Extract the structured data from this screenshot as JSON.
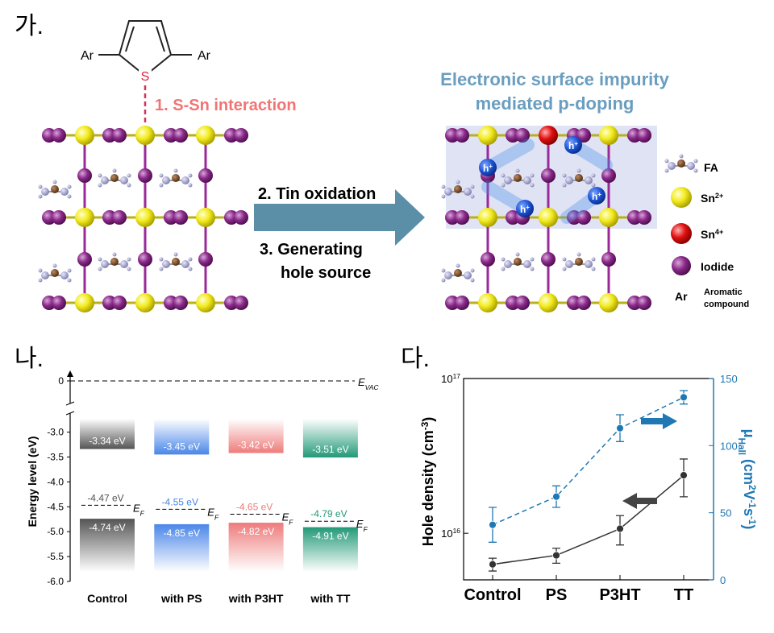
{
  "panels": {
    "a": {
      "label": "가.",
      "molecule": {
        "substituent_left": "Ar",
        "substituent_right": "Ar",
        "heteroatom": "S"
      },
      "step1": "1. S-Sn interaction",
      "step2": "2. Tin oxidation",
      "step3": [
        "3. Generating",
        "hole source"
      ],
      "title": [
        "Electronic surface impurity",
        "mediated p-doping"
      ],
      "holes": [
        {
          "base": "h",
          "charge": "+"
        },
        {
          "base": "h",
          "charge": "+"
        },
        {
          "base": "h",
          "charge": "+"
        },
        {
          "base": "h",
          "charge": "+"
        }
      ],
      "legend": [
        {
          "label": "FA"
        },
        {
          "label": "Sn",
          "charge": "2+"
        },
        {
          "label": "Sn",
          "charge": "4+"
        },
        {
          "label": "Iodide"
        },
        {
          "label": "Ar",
          "description": [
            "Aromatic",
            "compound"
          ]
        }
      ]
    },
    "b": {
      "label": "나."
    },
    "c": {
      "label": "다."
    }
  },
  "chart_data": [
    {
      "type": "energy-level",
      "ylabel": "Energy level (eV)",
      "categories": [
        "Control",
        "with PS",
        "with P3HT",
        "with TT"
      ],
      "colors": [
        "#555555",
        "#4a86e8",
        "#ee7b7b",
        "#229977"
      ],
      "cbm": {
        "values": [
          -3.34,
          -3.45,
          -3.42,
          -3.51
        ],
        "value_labels": [
          "-3.34 eV",
          "-3.45 eV",
          "-3.42 eV",
          "-3.51 eV"
        ]
      },
      "vbm": {
        "values": [
          -4.74,
          -4.85,
          -4.82,
          -4.91
        ],
        "value_labels": [
          "-4.74 eV",
          "-4.85 eV",
          "-4.82 eV",
          "-4.91 eV"
        ]
      },
      "fermi": {
        "values": [
          -4.47,
          -4.55,
          -4.65,
          -4.79
        ],
        "value_labels": [
          "-4.47 eV",
          "-4.55 eV",
          "-4.65 eV",
          "-4.79 eV"
        ],
        "label": {
          "base": "E",
          "sub": "F"
        }
      },
      "vacuum": {
        "value": 0,
        "label": {
          "base": "E",
          "sub": "VAC"
        }
      },
      "ylim": [
        -6.0,
        -2.7
      ],
      "axis_break": true,
      "yticks": [
        0,
        {
          "value": -3,
          "label": "-3.0"
        },
        -3.5,
        {
          "value": -4,
          "label": "-4.0"
        },
        -4.5,
        {
          "value": -5,
          "label": "-5.0"
        },
        -5.5,
        {
          "value": -6,
          "label": "-6.0"
        }
      ]
    },
    {
      "type": "line",
      "categories": [
        "Control",
        "PS",
        "P3HT",
        "TT"
      ],
      "ylabel": {
        "parts": [
          {
            "text": "Hole density (cm"
          },
          {
            "text": "-3",
            "shift": "sup"
          },
          {
            "text": ")"
          }
        ]
      },
      "y2label": {
        "parts": [
          {
            "text": "μ"
          },
          {
            "text": "Hall",
            "shift": "sub"
          },
          {
            "text": " (cm"
          },
          {
            "text": "2",
            "shift": "sup"
          },
          {
            "text": "V"
          },
          {
            "text": "-1",
            "shift": "sup"
          },
          {
            "text": "s"
          },
          {
            "text": "-1",
            "shift": "sup"
          },
          {
            "text": ")"
          }
        ]
      },
      "ylog": true,
      "ylim": [
        5000000000000000.0,
        1e+17
      ],
      "yticks": [
        {
          "value": 1e+16,
          "label": "10",
          "exponent": "16"
        },
        {
          "value": 1e+17,
          "label": "10",
          "exponent": "17"
        }
      ],
      "y2lim": [
        0,
        150
      ],
      "y2ticks": [
        0,
        50,
        100,
        150
      ],
      "y2color": "#1f78b4",
      "series": [
        {
          "color": "#333333",
          "style": "solid",
          "values": [
            6300000000000000.0,
            7200000000000000.0,
            1.07e+16,
            2.37e+16
          ],
          "errors": [
            600000000000000.0,
            800000000000000.0,
            2300000000000000.0,
            6500000000000000.0
          ]
        },
        {
          "color": "#1f78b4",
          "style": "dashed",
          "axis": "y2",
          "values": [
            41,
            62,
            113,
            136
          ],
          "errors": [
            13,
            8,
            10,
            5
          ]
        }
      ]
    }
  ]
}
